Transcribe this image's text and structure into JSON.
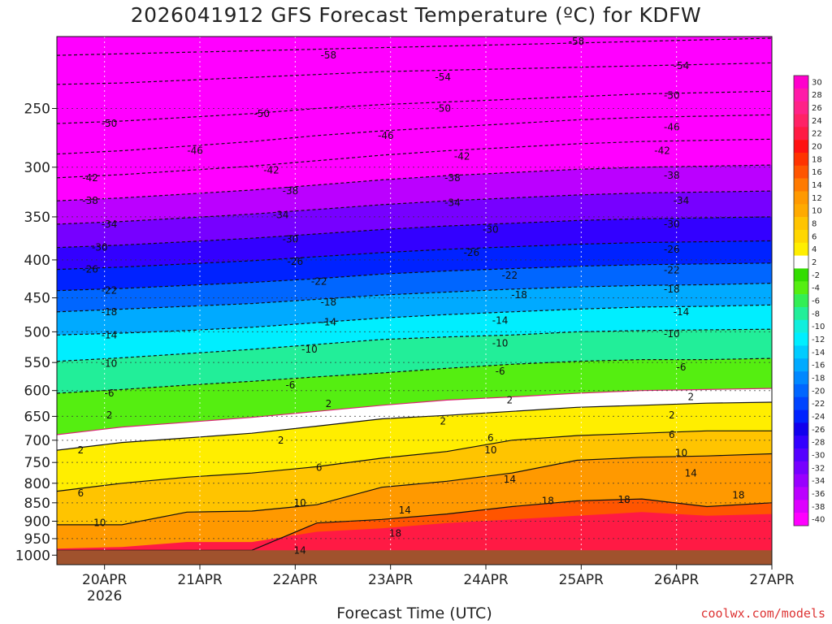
{
  "chart_data": {
    "type": "heatmap",
    "title": "2026041912 GFS Forecast Temperature (ºC) for KDFW",
    "xlabel": "Forecast Time (UTC)",
    "ylabel": "",
    "x_ticks": [
      {
        "label": "20APR",
        "sub": "2026",
        "day": 20
      },
      {
        "label": "21APR",
        "sub": "",
        "day": 21
      },
      {
        "label": "22APR",
        "sub": "",
        "day": 22
      },
      {
        "label": "23APR",
        "sub": "",
        "day": 23
      },
      {
        "label": "24APR",
        "sub": "",
        "day": 24
      },
      {
        "label": "25APR",
        "sub": "",
        "day": 25
      },
      {
        "label": "26APR",
        "sub": "",
        "day": 26
      },
      {
        "label": "27APR",
        "sub": "",
        "day": 27
      }
    ],
    "xlim_days": [
      19.5,
      27.0
    ],
    "y_ticks": [
      250,
      300,
      350,
      400,
      450,
      500,
      550,
      600,
      650,
      700,
      750,
      800,
      850,
      900,
      950,
      1000
    ],
    "ylim_hpa": [
      200,
      1030
    ],
    "y_scale": "log",
    "ground_pressure_hpa": 985,
    "ground_color": "#a0522d",
    "grid": "dotted",
    "colorbar": {
      "position": "right",
      "labels": [
        30,
        28,
        26,
        24,
        22,
        20,
        18,
        16,
        14,
        12,
        10,
        8,
        6,
        4,
        2,
        -2,
        -4,
        -6,
        -8,
        -10,
        -12,
        -14,
        -16,
        -18,
        -20,
        -22,
        -24,
        -26,
        -28,
        -30,
        -32,
        -34,
        -36,
        -38,
        -40
      ],
      "colors": [
        "#ff00cc",
        "#ff1aa8",
        "#ff2288",
        "#ff2266",
        "#ff1a44",
        "#ff1111",
        "#ff3300",
        "#ff5500",
        "#ff7a00",
        "#ff9900",
        "#ffaa00",
        "#ffc400",
        "#ffd700",
        "#ffee00",
        "#ffffff",
        "#33dd00",
        "#55ee11",
        "#33ee55",
        "#22ee99",
        "#11eedd",
        "#00eeff",
        "#00ccff",
        "#00aaff",
        "#0088ff",
        "#0066ff",
        "#0044ff",
        "#0022ff",
        "#1100ee",
        "#3300ff",
        "#5500ff",
        "#7700ff",
        "#9900ff",
        "#bb00ff",
        "#dd00ff",
        "#ff00ff"
      ]
    },
    "isotherms": [
      {
        "t": 14,
        "p": [
          985,
          985,
          985,
          985,
          905,
          895,
          880,
          860,
          845,
          840,
          860,
          850
        ]
      },
      {
        "t": 10,
        "p": [
          910,
          910,
          875,
          872,
          855,
          810,
          795,
          775,
          745,
          738,
          735,
          730
        ]
      },
      {
        "t": 6,
        "p": [
          820,
          800,
          785,
          775,
          760,
          740,
          725,
          700,
          690,
          685,
          680,
          680
        ]
      },
      {
        "t": 2,
        "p": [
          722,
          705,
          695,
          685,
          670,
          655,
          648,
          640,
          632,
          628,
          624,
          622
        ]
      },
      {
        "t": -2,
        "p": [
          688,
          672,
          662,
          652,
          640,
          628,
          618,
          612,
          605,
          600,
          598,
          596
        ]
      },
      {
        "t": -6,
        "p": [
          605,
          598,
          590,
          583,
          575,
          568,
          560,
          553,
          548,
          545,
          545,
          543
        ]
      },
      {
        "t": -10,
        "p": [
          548,
          542,
          535,
          528,
          520,
          512,
          508,
          505,
          500,
          498,
          497,
          496
        ]
      },
      {
        "t": -14,
        "p": [
          505,
          502,
          498,
          493,
          486,
          479,
          474,
          470,
          466,
          463,
          462,
          460
        ]
      },
      {
        "t": -18,
        "p": [
          470,
          466,
          462,
          458,
          452,
          446,
          442,
          438,
          435,
          433,
          432,
          430
        ]
      },
      {
        "t": -22,
        "p": [
          440,
          437,
          433,
          429,
          424,
          418,
          414,
          411,
          408,
          406,
          405,
          404
        ]
      },
      {
        "t": -26,
        "p": [
          412,
          409,
          405,
          401,
          396,
          391,
          387,
          384,
          381,
          379,
          378,
          377
        ]
      },
      {
        "t": -30,
        "p": [
          385,
          382,
          378,
          374,
          369,
          364,
          360,
          357,
          354,
          352,
          351,
          350
        ]
      },
      {
        "t": -34,
        "p": [
          358,
          355,
          351,
          347,
          342,
          337,
          333,
          330,
          327,
          325,
          324,
          323
        ]
      },
      {
        "t": -38,
        "p": [
          333,
          330,
          326,
          322,
          317,
          312,
          308,
          305,
          302,
          300,
          299,
          298
        ]
      },
      {
        "t": -42,
        "p": [
          310,
          307,
          303,
          299,
          294,
          289,
          285,
          282,
          279,
          277,
          276,
          275
        ]
      },
      {
        "t": -46,
        "p": [
          288,
          285,
          281,
          277,
          272,
          268,
          265,
          262,
          259,
          257,
          256,
          255
        ]
      },
      {
        "t": -50,
        "p": [
          262,
          260,
          257,
          254,
          250,
          247,
          245,
          243,
          241,
          239,
          238,
          237
        ]
      },
      {
        "t": -54,
        "p": [
          232,
          231,
          229,
          227,
          225,
          223,
          222,
          221,
          220,
          219,
          218,
          217
        ]
      },
      {
        "t": -58,
        "p": [
          212,
          211,
          210,
          209,
          208,
          207,
          206,
          205,
          204,
          203,
          202,
          201
        ]
      }
    ],
    "isotherm_labels": [
      {
        "text": "14",
        "day": 22.05,
        "p": 985
      },
      {
        "text": "10",
        "day": 19.95,
        "p": 905
      },
      {
        "text": "10",
        "day": 22.05,
        "p": 850
      },
      {
        "text": "14",
        "day": 23.15,
        "p": 870
      },
      {
        "text": "18",
        "day": 23.05,
        "p": 935
      },
      {
        "text": "18",
        "day": 24.65,
        "p": 845
      },
      {
        "text": "18",
        "day": 25.45,
        "p": 842
      },
      {
        "text": "18",
        "day": 26.65,
        "p": 830
      },
      {
        "text": "14",
        "day": 24.25,
        "p": 790
      },
      {
        "text": "14",
        "day": 26.15,
        "p": 776
      },
      {
        "text": "10",
        "day": 24.05,
        "p": 722
      },
      {
        "text": "10",
        "day": 26.05,
        "p": 728
      },
      {
        "text": "6",
        "day": 19.75,
        "p": 825
      },
      {
        "text": "6",
        "day": 22.25,
        "p": 762
      },
      {
        "text": "6",
        "day": 24.05,
        "p": 695
      },
      {
        "text": "6",
        "day": 25.95,
        "p": 688
      },
      {
        "text": "2",
        "day": 19.75,
        "p": 722
      },
      {
        "text": "2",
        "day": 21.85,
        "p": 700
      },
      {
        "text": "2",
        "day": 20.05,
        "p": 648
      },
      {
        "text": "2",
        "day": 22.35,
        "p": 625
      },
      {
        "text": "2",
        "day": 23.55,
        "p": 660
      },
      {
        "text": "2",
        "day": 24.25,
        "p": 618
      },
      {
        "text": "2",
        "day": 25.95,
        "p": 648
      },
      {
        "text": "2",
        "day": 26.15,
        "p": 612
      },
      {
        "text": "-6",
        "day": 20.05,
        "p": 605
      },
      {
        "text": "-6",
        "day": 21.95,
        "p": 590
      },
      {
        "text": "-6",
        "day": 24.15,
        "p": 565
      },
      {
        "text": "-6",
        "day": 26.05,
        "p": 558
      },
      {
        "text": "-10",
        "day": 20.05,
        "p": 552
      },
      {
        "text": "-10",
        "day": 22.15,
        "p": 528
      },
      {
        "text": "-10",
        "day": 24.15,
        "p": 518
      },
      {
        "text": "-10",
        "day": 25.95,
        "p": 503
      },
      {
        "text": "-14",
        "day": 20.05,
        "p": 505
      },
      {
        "text": "-14",
        "day": 22.35,
        "p": 485
      },
      {
        "text": "-14",
        "day": 24.15,
        "p": 483
      },
      {
        "text": "-14",
        "day": 26.05,
        "p": 470
      },
      {
        "text": "-18",
        "day": 20.05,
        "p": 470
      },
      {
        "text": "-18",
        "day": 22.35,
        "p": 456
      },
      {
        "text": "-18",
        "day": 24.35,
        "p": 446
      },
      {
        "text": "-18",
        "day": 25.95,
        "p": 438
      },
      {
        "text": "-22",
        "day": 20.05,
        "p": 440
      },
      {
        "text": "-22",
        "day": 22.25,
        "p": 428
      },
      {
        "text": "-22",
        "day": 24.25,
        "p": 420
      },
      {
        "text": "-22",
        "day": 25.95,
        "p": 413
      },
      {
        "text": "-26",
        "day": 19.85,
        "p": 412
      },
      {
        "text": "-26",
        "day": 22.0,
        "p": 402
      },
      {
        "text": "-26",
        "day": 23.85,
        "p": 391
      },
      {
        "text": "-26",
        "day": 25.95,
        "p": 387
      },
      {
        "text": "-30",
        "day": 19.95,
        "p": 385
      },
      {
        "text": "-30",
        "day": 21.95,
        "p": 375
      },
      {
        "text": "-30",
        "day": 24.05,
        "p": 364
      },
      {
        "text": "-30",
        "day": 25.95,
        "p": 358
      },
      {
        "text": "-34",
        "day": 20.05,
        "p": 358
      },
      {
        "text": "-34",
        "day": 21.85,
        "p": 348
      },
      {
        "text": "-34",
        "day": 23.65,
        "p": 335
      },
      {
        "text": "-34",
        "day": 26.05,
        "p": 333
      },
      {
        "text": "-38",
        "day": 19.85,
        "p": 333
      },
      {
        "text": "-38",
        "day": 21.95,
        "p": 323
      },
      {
        "text": "-38",
        "day": 23.65,
        "p": 310
      },
      {
        "text": "-38",
        "day": 25.95,
        "p": 308
      },
      {
        "text": "-42",
        "day": 19.85,
        "p": 310
      },
      {
        "text": "-42",
        "day": 21.75,
        "p": 303
      },
      {
        "text": "-42",
        "day": 23.75,
        "p": 290
      },
      {
        "text": "-42",
        "day": 25.85,
        "p": 285
      },
      {
        "text": "-46",
        "day": 20.95,
        "p": 285
      },
      {
        "text": "-46",
        "day": 22.95,
        "p": 272
      },
      {
        "text": "-46",
        "day": 25.95,
        "p": 265
      },
      {
        "text": "-50",
        "day": 20.05,
        "p": 262
      },
      {
        "text": "-50",
        "day": 21.65,
        "p": 254
      },
      {
        "text": "-50",
        "day": 23.55,
        "p": 250
      },
      {
        "text": "-50",
        "day": 25.95,
        "p": 240
      },
      {
        "text": "-54",
        "day": 23.55,
        "p": 227
      },
      {
        "text": "-54",
        "day": 26.05,
        "p": 219
      },
      {
        "text": "-58",
        "day": 22.35,
        "p": 212
      },
      {
        "text": "-58",
        "day": 24.95,
        "p": 203
      }
    ]
  },
  "watermark": "coolwx.com/models"
}
